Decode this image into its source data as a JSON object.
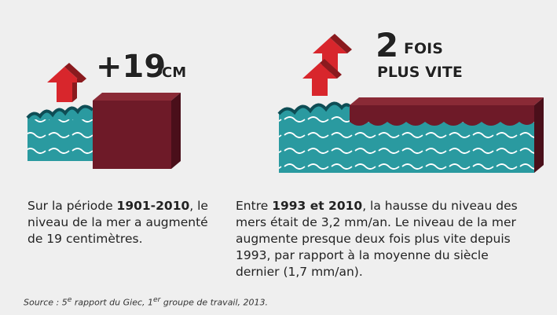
{
  "left": {
    "headline": {
      "number": "+19",
      "unit": "CM"
    },
    "text": {
      "before": "Sur la période ",
      "bold": "1901-2010",
      "after": ", le niveau de la mer a augmenté de 19 centimètres."
    }
  },
  "right": {
    "headline": {
      "number": "2",
      "line1": "FOIS",
      "line2": "PLUS VITE"
    },
    "text": {
      "before": "Entre ",
      "bold": "1993 et 2010",
      "after": ", la hausse du niveau des mers était de 3,2 mm/an. Le niveau de la mer augmente presque deux fois plus vite depuis 1993, par rapport à la moyenne du siècle dernier (1,7 mm/an)."
    }
  },
  "source": {
    "part1": "Source : 5",
    "sup1": "e",
    "part2": " rapport du Giec, 1",
    "sup2": "er",
    "part3": " groupe de travail, 2013."
  }
}
